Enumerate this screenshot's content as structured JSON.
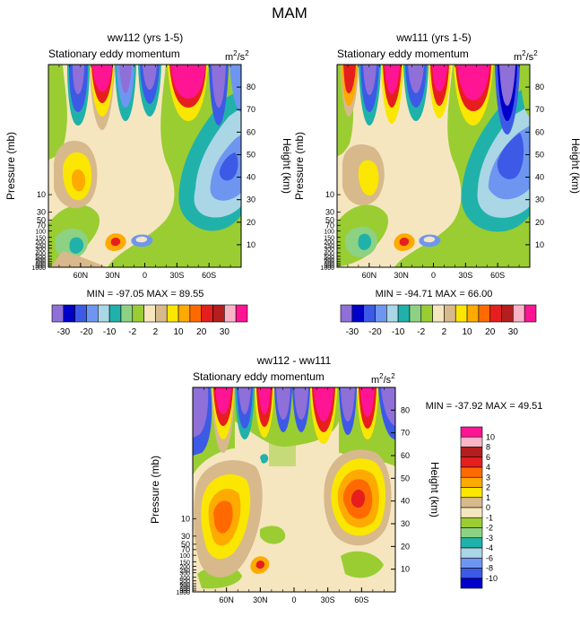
{
  "main_title": "MAM",
  "colors": {
    "c1": "#8f6fd8",
    "c2": "#0000c8",
    "c3": "#3c5ae6",
    "c4": "#6e96f0",
    "c5": "#aad6e6",
    "c6": "#20b2aa",
    "c7": "#8cd282",
    "c8": "#9acd32",
    "c9": "#f5e6c0",
    "c10": "#d7b98c",
    "c11": "#fae600",
    "c12": "#ffaa00",
    "c13": "#ff6a00",
    "c14": "#e61e1e",
    "c15": "#b41e1e",
    "c16": "#fab4c8",
    "c17": "#ff1493"
  },
  "chart_data": [
    {
      "type": "heatmap",
      "title": "ww112 (yrs 1-5)",
      "subtitle": "Stationary eddy momentum",
      "units_base": "m",
      "units_exp1": "2",
      "units_mid": "/s",
      "units_exp2": "2",
      "ylabel": "Pressure (mb)",
      "y2label": "Height (km)",
      "xlabel": "",
      "x_ticks": [
        "60N",
        "30N",
        "0",
        "30S",
        "60S"
      ],
      "x_range": [
        90,
        -90
      ],
      "pressure_ticks": [
        "10",
        "30",
        "50",
        "70",
        "100",
        "150",
        "200",
        "250",
        "300",
        "400",
        "500",
        "600",
        "700",
        "800",
        "900",
        "1000"
      ],
      "height_ticks": [
        "10",
        "20",
        "30",
        "40",
        "50",
        "60",
        "70",
        "80"
      ],
      "stats_label": "MIN = -97.05  MAX =  89.55",
      "min": -97.05,
      "max": 89.55,
      "colorbar_labels": [
        "-30",
        "-20",
        "-10",
        "-2",
        "2",
        "10",
        "20",
        "30"
      ]
    },
    {
      "type": "heatmap",
      "title": "ww111 (yrs 1-5)",
      "subtitle": "Stationary eddy momentum",
      "units_base": "m",
      "units_exp1": "2",
      "units_mid": "/s",
      "units_exp2": "2",
      "ylabel": "Pressure (mb)",
      "y2label": "Height (km)",
      "xlabel": "",
      "x_ticks": [
        "60N",
        "30N",
        "0",
        "30S",
        "60S"
      ],
      "x_range": [
        90,
        -90
      ],
      "pressure_ticks": [
        "10",
        "30",
        "50",
        "70",
        "100",
        "150",
        "200",
        "250",
        "300",
        "400",
        "500",
        "600",
        "700",
        "800",
        "900",
        "1000"
      ],
      "height_ticks": [
        "10",
        "20",
        "30",
        "40",
        "50",
        "60",
        "70",
        "80"
      ],
      "stats_label": "MIN = -94.71  MAX =  66.00",
      "min": -94.71,
      "max": 66.0,
      "colorbar_labels": [
        "-30",
        "-20",
        "-10",
        "-2",
        "2",
        "10",
        "20",
        "30"
      ]
    },
    {
      "type": "heatmap",
      "title": "ww112 - ww111",
      "subtitle": "Stationary eddy momentum",
      "units_base": "m",
      "units_exp1": "2",
      "units_mid": "/s",
      "units_exp2": "2",
      "ylabel": "Pressure (mb)",
      "y2label": "Height (km)",
      "xlabel": "",
      "x_ticks": [
        "60N",
        "30N",
        "0",
        "30S",
        "60S"
      ],
      "x_range": [
        90,
        -90
      ],
      "pressure_ticks": [
        "10",
        "30",
        "50",
        "70",
        "100",
        "150",
        "200",
        "250",
        "300",
        "400",
        "500",
        "600",
        "700",
        "800",
        "900",
        "1000"
      ],
      "height_ticks": [
        "10",
        "20",
        "30",
        "40",
        "50",
        "60",
        "70",
        "80"
      ],
      "stats_label": "MIN = -37.92  MAX =  49.51",
      "min": -37.92,
      "max": 49.51,
      "colorbar_labels": [
        "10",
        "8",
        "6",
        "4",
        "3",
        "2",
        "1",
        "0",
        "-1",
        "-2",
        "-3",
        "-4",
        "-6",
        "-8",
        "-10"
      ]
    }
  ]
}
